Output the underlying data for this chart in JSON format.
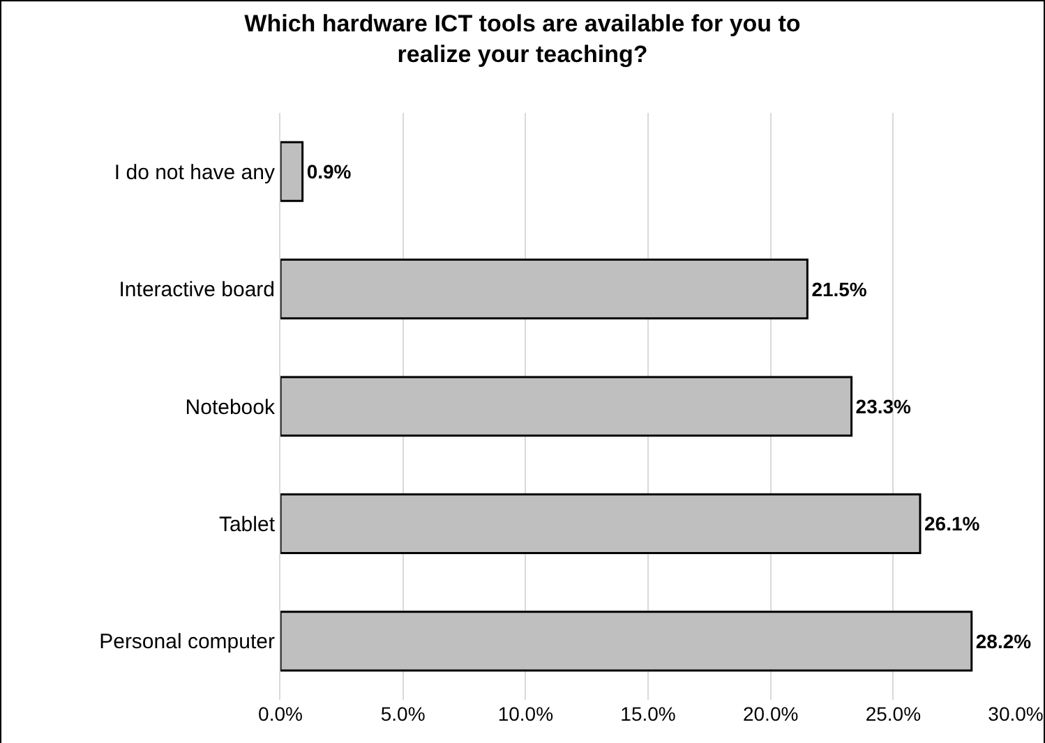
{
  "chart_data": {
    "type": "bar",
    "orientation": "horizontal",
    "title": "Which hardware ICT tools are available for you to realize your teaching?",
    "categories": [
      "I do not have any",
      "Interactive board",
      "Notebook",
      "Tablet",
      "Personal computer"
    ],
    "values": [
      0.9,
      21.5,
      23.3,
      26.1,
      28.2
    ],
    "value_labels": [
      "0.9%",
      "21.5%",
      "23.3%",
      "26.1%",
      "28.2%"
    ],
    "color": "#bfbfbf",
    "xlim": [
      0,
      30
    ],
    "xticks": [
      {
        "value": 0,
        "label": "0.0%"
      },
      {
        "value": 5,
        "label": "5.0%"
      },
      {
        "value": 10,
        "label": "10.0%"
      },
      {
        "value": 15,
        "label": "15.0%"
      },
      {
        "value": 20,
        "label": "20.0%"
      },
      {
        "value": 25,
        "label": "25.0%"
      },
      {
        "value": 30,
        "label": "30.0%"
      }
    ],
    "grid": "x",
    "legend": false
  }
}
